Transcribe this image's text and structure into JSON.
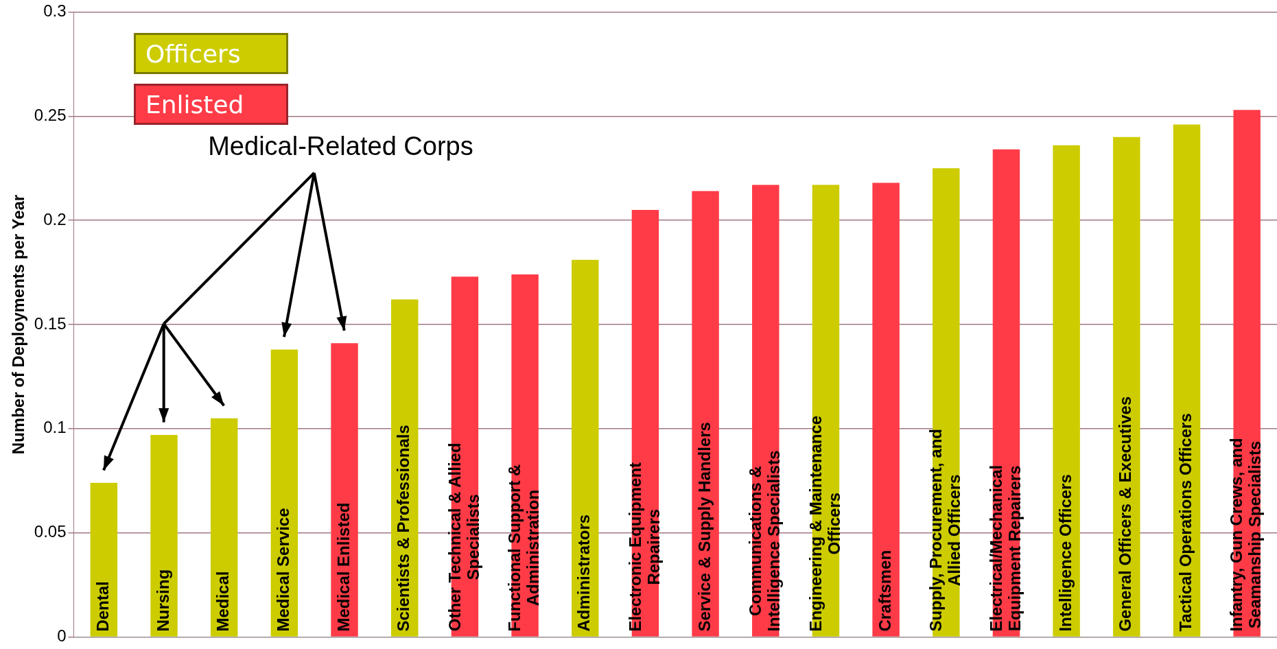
{
  "chart_data": {
    "type": "bar",
    "ylabel": "Number of Deployments per Year",
    "categories": [
      "Dental",
      "Nursing",
      "Medical",
      "Medical Service",
      "Medical Enlisted",
      "Scientists & Professionals",
      "Other Technical & Allied\nSpecialists",
      "Functional Support &\nAdministration",
      "Administrators",
      "Electronic Equipment\nRepairers",
      "Service & Supply Handlers",
      "Communications &\nIntelligence Specialists",
      "Engineering & Maintenance\nOfficers",
      "Craftsmen",
      "Supply, Procurement, and\nAllied Officers",
      "Electrical/Mechanical\nEquipment Repairers",
      "Intelligence Officers",
      "General Officers & Executives",
      "Tactical Operations Officers",
      "Infantry, Gun Crews, and\nSeamanship Specialists"
    ],
    "series": [
      {
        "name": "Officers",
        "color": "#cccc00",
        "values": [
          0.074,
          0.097,
          0.105,
          0.138,
          null,
          0.162,
          null,
          null,
          0.181,
          null,
          null,
          null,
          0.217,
          null,
          0.225,
          null,
          0.236,
          0.24,
          0.246,
          null
        ]
      },
      {
        "name": "Enlisted",
        "color": "#ff3b47",
        "values": [
          null,
          null,
          null,
          null,
          0.141,
          null,
          0.173,
          0.174,
          null,
          0.205,
          0.214,
          0.217,
          null,
          0.218,
          null,
          0.234,
          null,
          null,
          null,
          0.253
        ]
      }
    ],
    "ylim": [
      0,
      0.3
    ],
    "yticks": [
      0,
      0.05,
      0.1,
      0.15,
      0.2,
      0.25,
      0.3
    ],
    "grid": "y",
    "legend": "top left",
    "annotations": [
      "Medical-Related Corps"
    ]
  }
}
